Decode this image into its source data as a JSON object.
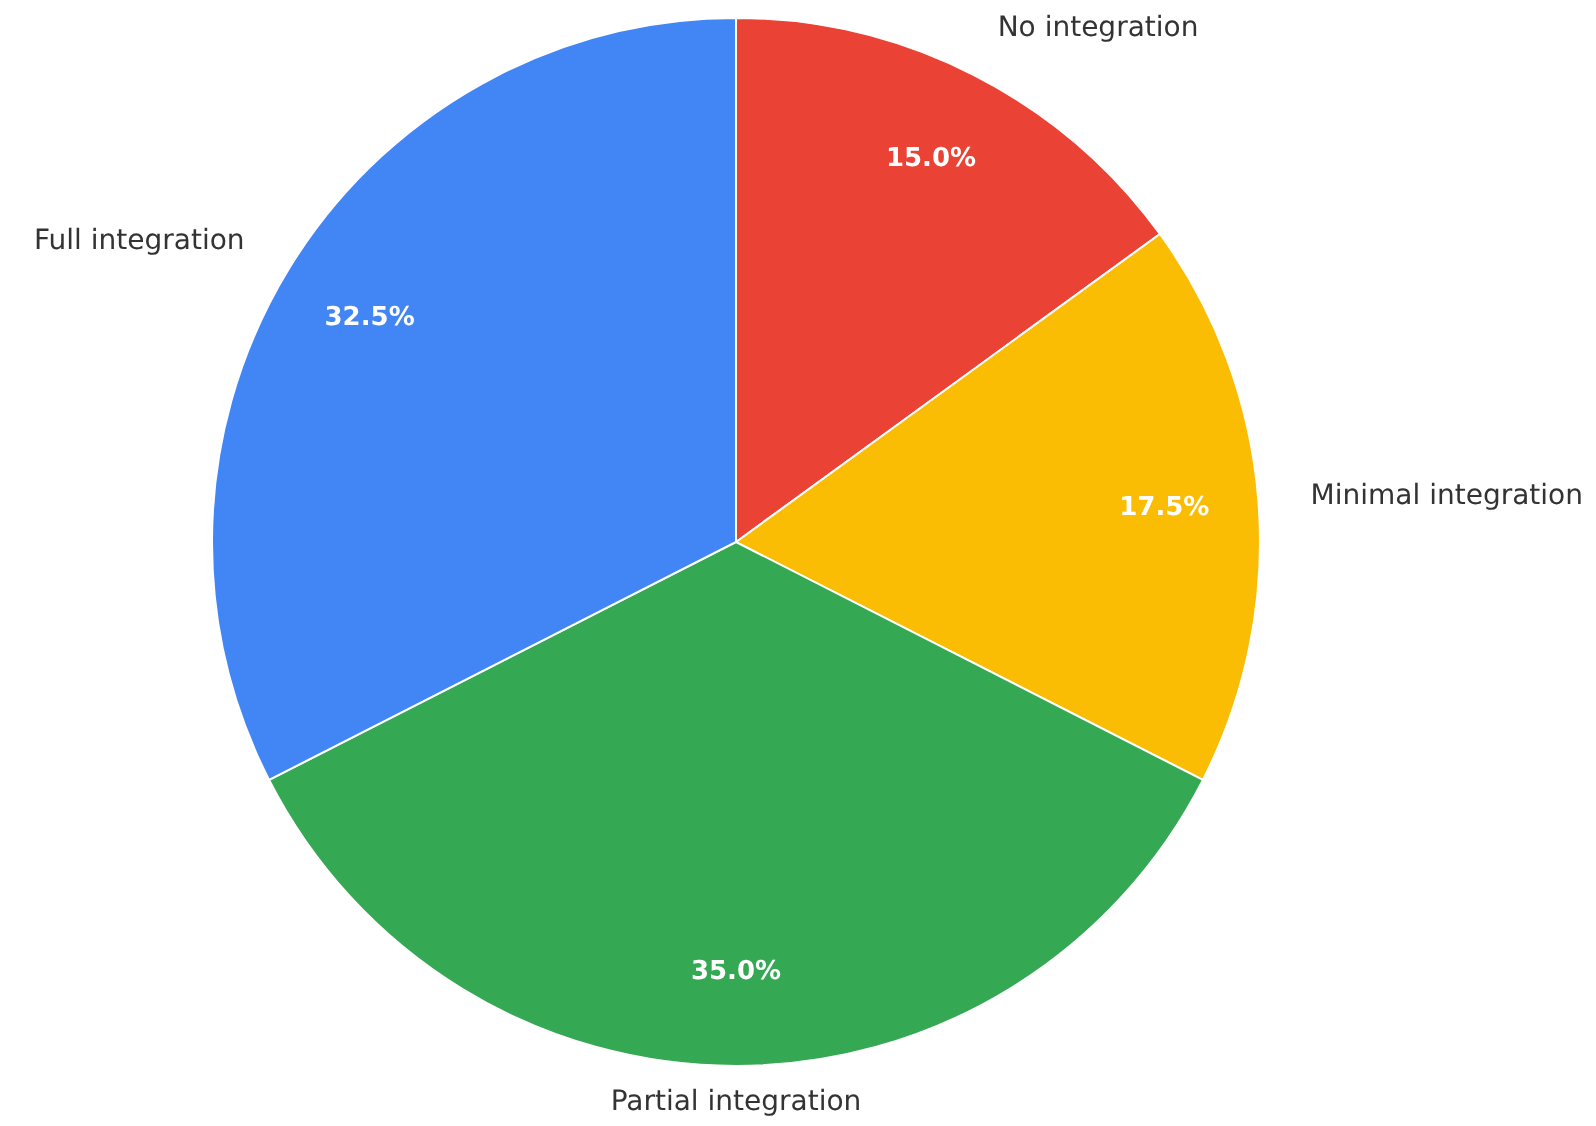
{
  "chart_data": {
    "type": "pie",
    "categories": [
      "No integration",
      "Minimal integration",
      "Partial integration",
      "Full integration"
    ],
    "values": [
      15.0,
      17.5,
      35.0,
      32.5
    ],
    "colors": [
      "#ea4335",
      "#fbbc04",
      "#34a853",
      "#4285f4"
    ],
    "value_labels": [
      "15.0%",
      "17.5%",
      "35.0%",
      "32.5%"
    ]
  }
}
